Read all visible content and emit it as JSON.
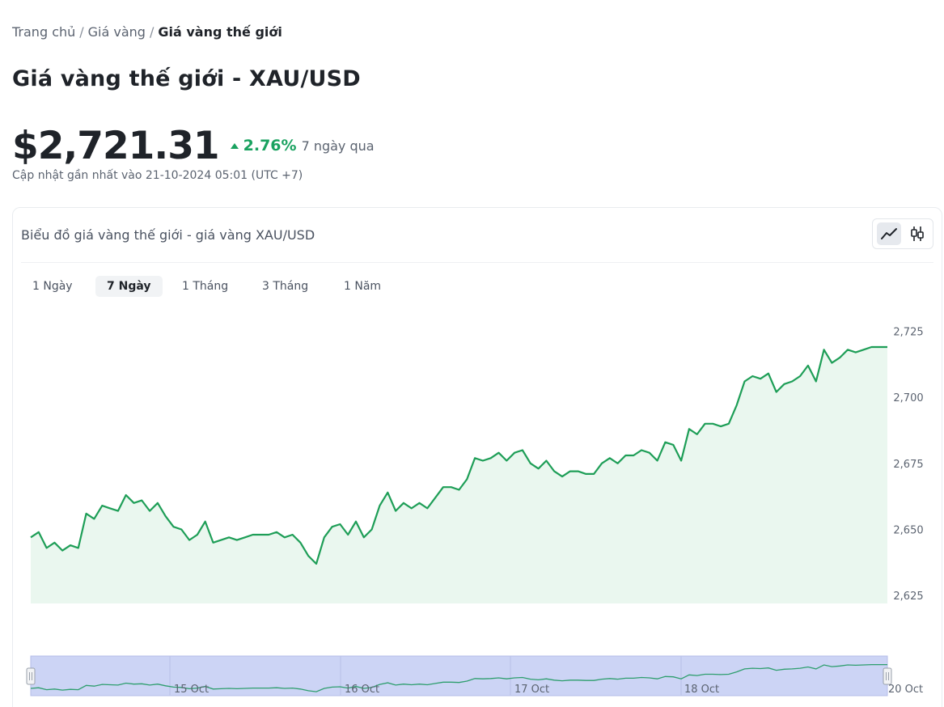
{
  "breadcrumb": {
    "home": "Trang chủ",
    "gold": "Giá vàng",
    "current": "Giá vàng thế giới",
    "separator": "/"
  },
  "page_title": "Giá vàng thế giới - XAU/USD",
  "price": {
    "value": "$2,721.31",
    "change_pct": "2.76%",
    "change_period": "7 ngày qua",
    "direction": "up",
    "updated": "Cập nhật gần nhất vào 21-10-2024 05:01 (UTC +7)"
  },
  "chart_card": {
    "title": "Biểu đồ giá vàng thế giới - giá vàng XAU/USD",
    "chart_types": [
      "line-chart-icon",
      "candlestick-icon"
    ],
    "selected_chart_type": "line",
    "ranges": [
      "1 Ngày",
      "7 Ngày",
      "1 Tháng",
      "3 Tháng",
      "1 Năm"
    ],
    "selected_range": "7 Ngày"
  },
  "colors": {
    "accent_green": "#1aa260",
    "line_green": "#1e9e57",
    "area_fill": "#eaf7ef",
    "navigator_fill": "#ccd4f5",
    "navigator_line": "#2e9e6e"
  },
  "chart_data": {
    "type": "area",
    "series": [
      {
        "values": [
          2647,
          2649,
          2643,
          2645,
          2642,
          2644,
          2643,
          2656,
          2654,
          2659,
          2658,
          2657,
          2663,
          2660,
          2661,
          2657,
          2660,
          2655,
          2651,
          2650,
          2646,
          2648,
          2653,
          2645,
          2646,
          2647,
          2646,
          2647,
          2648,
          2648,
          2648,
          2649,
          2647,
          2648,
          2645,
          2640,
          2637,
          2647,
          2651,
          2652,
          2648,
          2653,
          2647,
          2650,
          2659,
          2664,
          2657,
          2660,
          2658,
          2660,
          2658,
          2662,
          2666,
          2666,
          2665,
          2669,
          2677,
          2676,
          2677,
          2679,
          2676,
          2679,
          2680,
          2675,
          2673,
          2676,
          2672,
          2670,
          2672,
          2672,
          2671,
          2671,
          2675,
          2677,
          2675,
          2678,
          2678,
          2680,
          2679,
          2676,
          2683,
          2682,
          2676,
          2688,
          2686,
          2690,
          2690,
          2689,
          2690,
          2697,
          2706,
          2708,
          2707,
          2709,
          2702,
          2705,
          2706,
          2708,
          2712,
          2706,
          2718,
          2713,
          2715,
          2718,
          2717,
          2718,
          2719,
          2719,
          2719
        ]
      }
    ],
    "x_ticks": [
      "15 Oct",
      "16 Oct",
      "17 Oct",
      "18 Oct",
      "20 Oct"
    ],
    "y_ticks": [
      2625,
      2650,
      2675,
      2700,
      2725
    ],
    "ylim": [
      2622,
      2734
    ],
    "y_axis_side": "right",
    "grid": false,
    "legend": "none"
  }
}
